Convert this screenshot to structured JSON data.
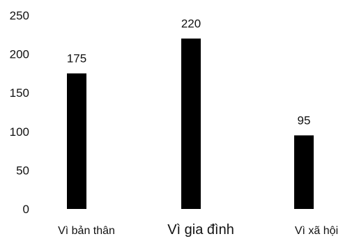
{
  "chart_data": {
    "type": "bar",
    "title": "",
    "xlabel": "",
    "ylabel": "",
    "categories": [
      "Vì bản thân",
      "Vì gia đình",
      "Vì xã hội"
    ],
    "values": [
      175,
      220,
      95
    ],
    "data_labels": [
      "175",
      "220",
      "95"
    ],
    "y_ticks": [
      "0",
      "50",
      "100",
      "150",
      "200",
      "250"
    ],
    "ylim": [
      0,
      250
    ],
    "grid": false,
    "legend": "none",
    "bar_color": "#000000"
  }
}
